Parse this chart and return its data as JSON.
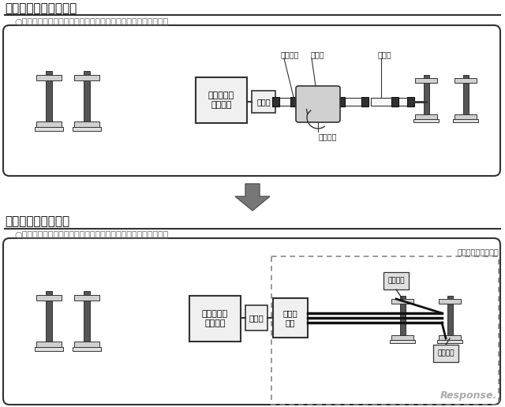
{
  "title1": "［従来車両］変速機式",
  "title2": "［新型車両］電気式",
  "desc1": "○エンジンの動力を変速機と推進軸で直接伝達して走行します。",
  "desc2": "○エンジンの動力で発電した電力によりモーターで走行します。",
  "label_diesel": "ディーゼル\nエンジン",
  "label_transmission": "変速機",
  "label_uj_top": "自在継手",
  "label_uj_bottom": "自在継手",
  "label_prop1": "推進軸",
  "label_prop2": "推進軸",
  "label_generator": "発電機",
  "label_inverter": "主変換\n装置",
  "label_motor_top": "モーター",
  "label_motor_bottom": "モーター",
  "label_same_system": "電車と同じシステム",
  "watermark": "Response.",
  "bg_color": "#ffffff",
  "line_color": "#333333",
  "fill_light": "#f0f0f0",
  "fill_medium": "#d0d0d0",
  "fill_dark": "#555555",
  "arrow_fill": "#777777",
  "dashed_color": "#888888",
  "text_gray": "#666666"
}
